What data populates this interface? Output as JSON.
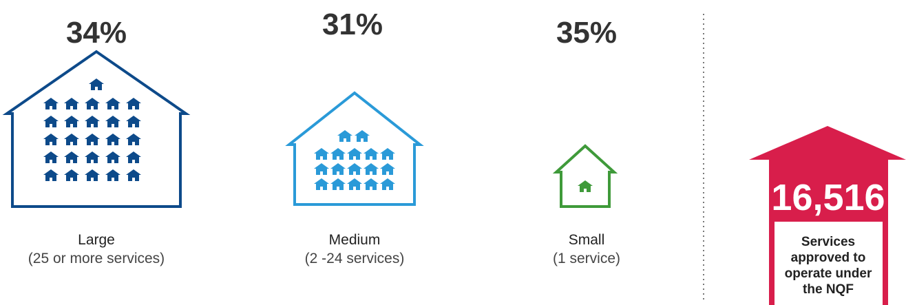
{
  "groups": [
    {
      "percent": "34%",
      "label": "Large",
      "sublabel": "(25 or more services)"
    },
    {
      "percent": "31%",
      "label": "Medium",
      "sublabel": "(2 -24  services)"
    },
    {
      "percent": "35%",
      "label": "Small",
      "sublabel": "(1 service)"
    }
  ],
  "total": {
    "value": "16,516",
    "caption": [
      "Services",
      "approved to",
      "operate under",
      "the NQF"
    ]
  }
}
